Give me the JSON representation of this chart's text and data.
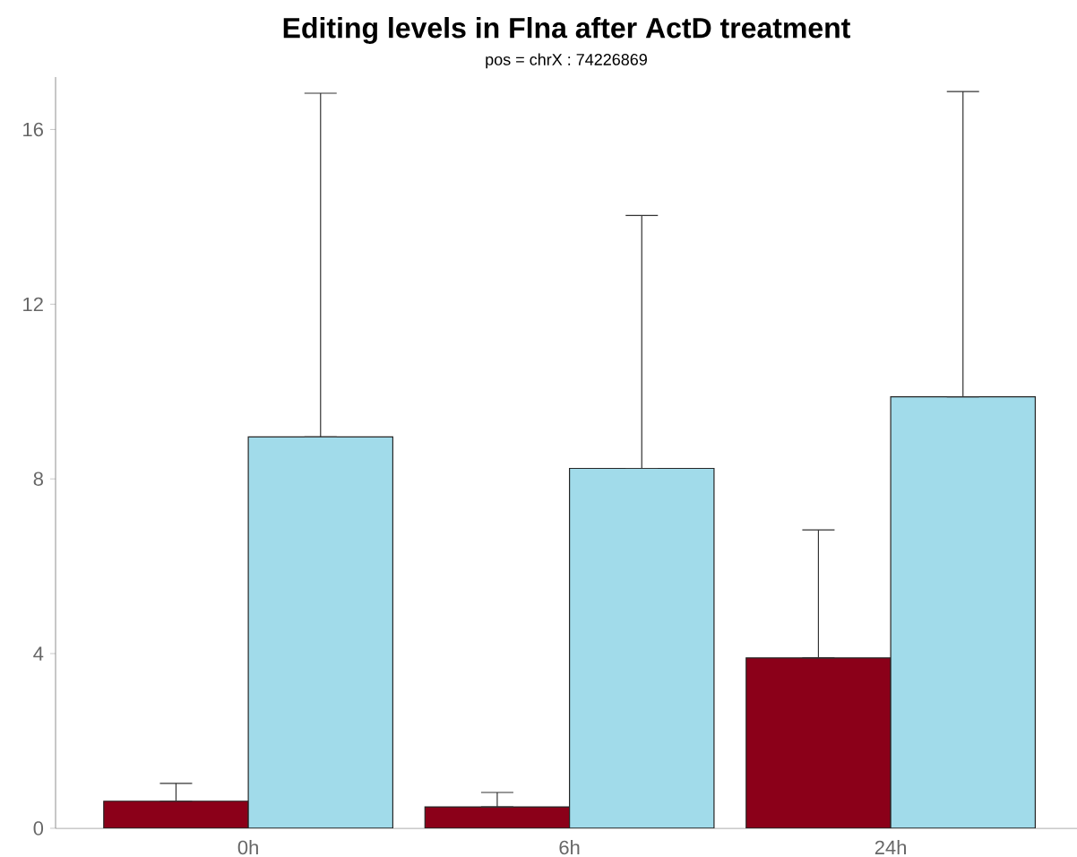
{
  "chart_data": {
    "type": "bar",
    "title": "Editing levels in Flna after ActD treatment",
    "subtitle": "pos =  chrX : 74226869",
    "categories": [
      "0h",
      "6h",
      "24h"
    ],
    "series": [
      {
        "color": "#8b0019",
        "values": [
          0.62,
          0.49,
          3.9
        ],
        "errors": [
          [
            0.62,
            1.03
          ],
          [
            0.49,
            0.82
          ],
          [
            3.9,
            6.83
          ]
        ]
      },
      {
        "color": "#a1dbea",
        "values": [
          8.96,
          8.24,
          9.88
        ],
        "errors": [
          [
            8.96,
            16.83
          ],
          [
            8.24,
            14.03
          ],
          [
            9.88,
            16.87
          ]
        ]
      }
    ],
    "ylim": [
      0,
      17.2
    ],
    "yticks": [
      0,
      4,
      8,
      12,
      16
    ],
    "grid": false,
    "legend": false
  }
}
